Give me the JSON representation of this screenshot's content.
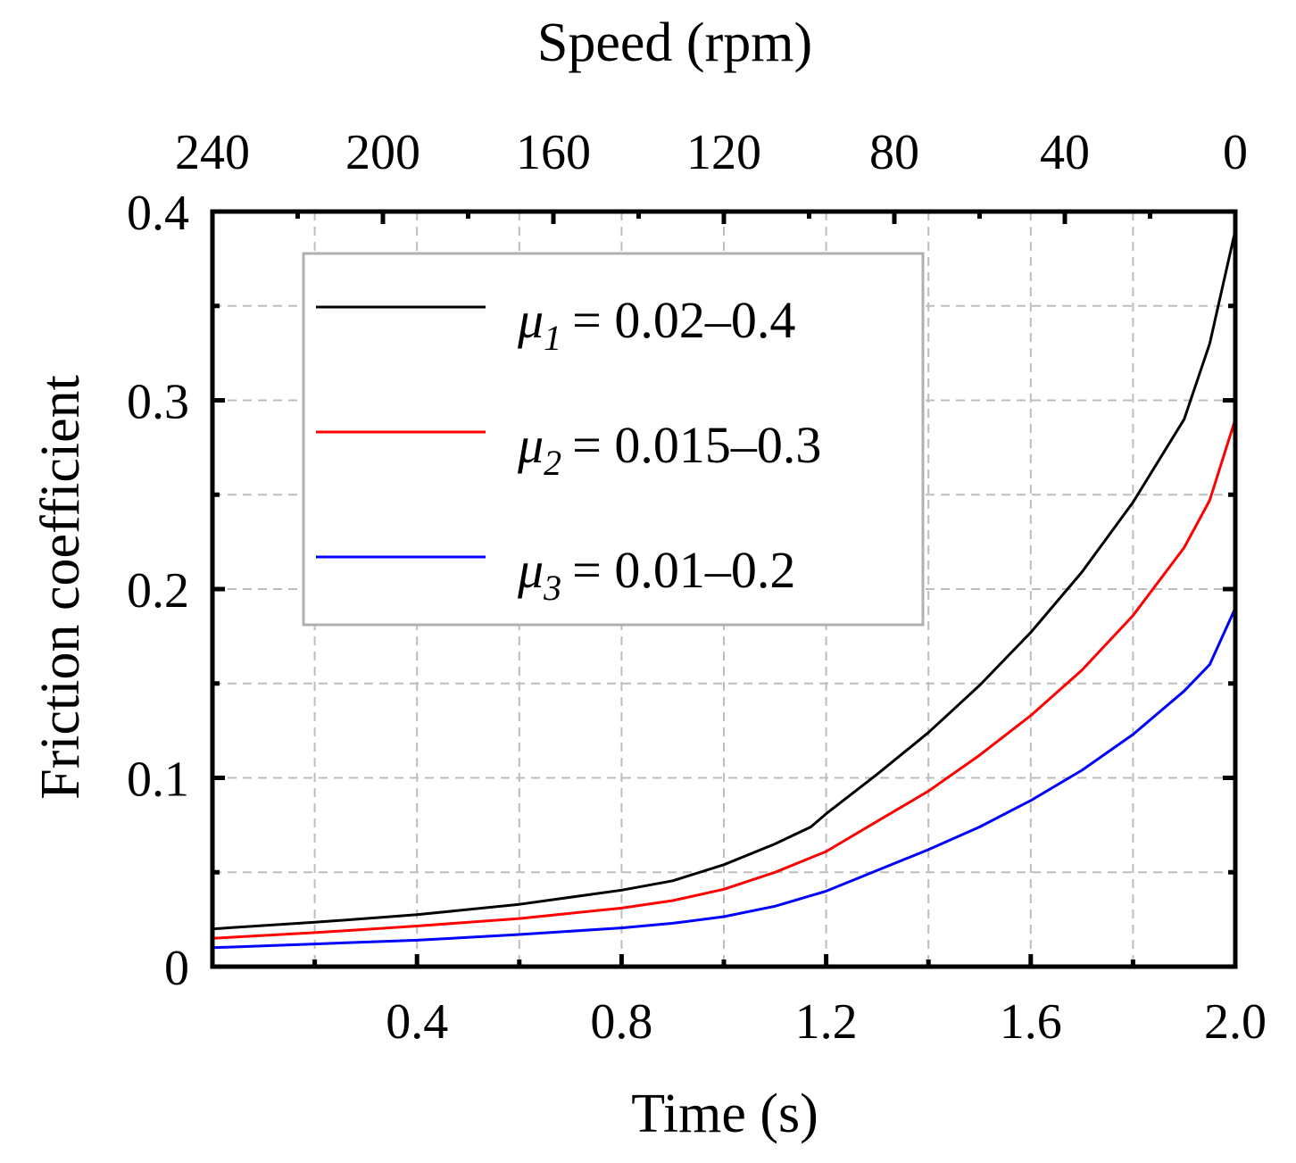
{
  "chart_data": {
    "type": "line",
    "xlabel": "Time (s)",
    "x2label": "Speed (rpm)",
    "ylabel": "Friction coefficient",
    "xlim": [
      0,
      2.0
    ],
    "ylim": [
      0,
      0.4
    ],
    "x2lim": [
      240,
      0
    ],
    "grid": true,
    "legend_position": "top-left",
    "x_ticks": [
      "0.4",
      "0.8",
      "1.2",
      "1.6",
      "2.0"
    ],
    "x_tick_values": [
      0.4,
      0.8,
      1.2,
      1.6,
      2.0
    ],
    "x2_ticks": [
      "240",
      "200",
      "160",
      "120",
      "80",
      "40",
      "0"
    ],
    "x2_tick_values": [
      240,
      200,
      160,
      120,
      80,
      40,
      0
    ],
    "y_ticks": [
      "0",
      "0.1",
      "0.2",
      "0.3",
      "0.4"
    ],
    "y_tick_values": [
      0,
      0.1,
      0.2,
      0.3,
      0.4
    ],
    "series": [
      {
        "name": "μ1 = 0.02–0.4",
        "mu": "μ",
        "sub": "1",
        "eq": "= 0.02–0.4",
        "color": "#000000",
        "x": [
          0,
          0.2,
          0.4,
          0.6,
          0.8,
          0.9,
          1.0,
          1.1,
          1.17,
          1.2,
          1.3,
          1.4,
          1.5,
          1.6,
          1.7,
          1.8,
          1.9,
          1.95,
          2.0
        ],
        "values": [
          0.02,
          0.0235,
          0.0275,
          0.033,
          0.0405,
          0.0455,
          0.054,
          0.065,
          0.074,
          0.081,
          0.102,
          0.124,
          0.149,
          0.177,
          0.209,
          0.246,
          0.29,
          0.33,
          0.39
        ]
      },
      {
        "name": "μ2 = 0.015–0.3",
        "mu": "μ",
        "sub": "2",
        "eq": "= 0.015–0.3",
        "color": "#ff0000",
        "x": [
          0,
          0.2,
          0.4,
          0.6,
          0.8,
          0.9,
          1.0,
          1.1,
          1.2,
          1.3,
          1.4,
          1.5,
          1.6,
          1.7,
          1.8,
          1.9,
          1.95,
          2.0
        ],
        "values": [
          0.015,
          0.018,
          0.0215,
          0.0255,
          0.031,
          0.035,
          0.041,
          0.05,
          0.061,
          0.077,
          0.093,
          0.112,
          0.133,
          0.157,
          0.186,
          0.222,
          0.247,
          0.29
        ]
      },
      {
        "name": "μ3 = 0.01–0.2",
        "mu": "μ",
        "sub": "3",
        "eq": "= 0.01–0.2",
        "color": "#0000ff",
        "x": [
          0,
          0.2,
          0.4,
          0.6,
          0.8,
          0.9,
          1.0,
          1.1,
          1.2,
          1.3,
          1.4,
          1.5,
          1.6,
          1.7,
          1.8,
          1.9,
          1.95,
          2.0
        ],
        "values": [
          0.01,
          0.012,
          0.014,
          0.017,
          0.0205,
          0.023,
          0.0265,
          0.032,
          0.04,
          0.051,
          0.062,
          0.074,
          0.088,
          0.104,
          0.123,
          0.146,
          0.16,
          0.19
        ]
      }
    ]
  }
}
